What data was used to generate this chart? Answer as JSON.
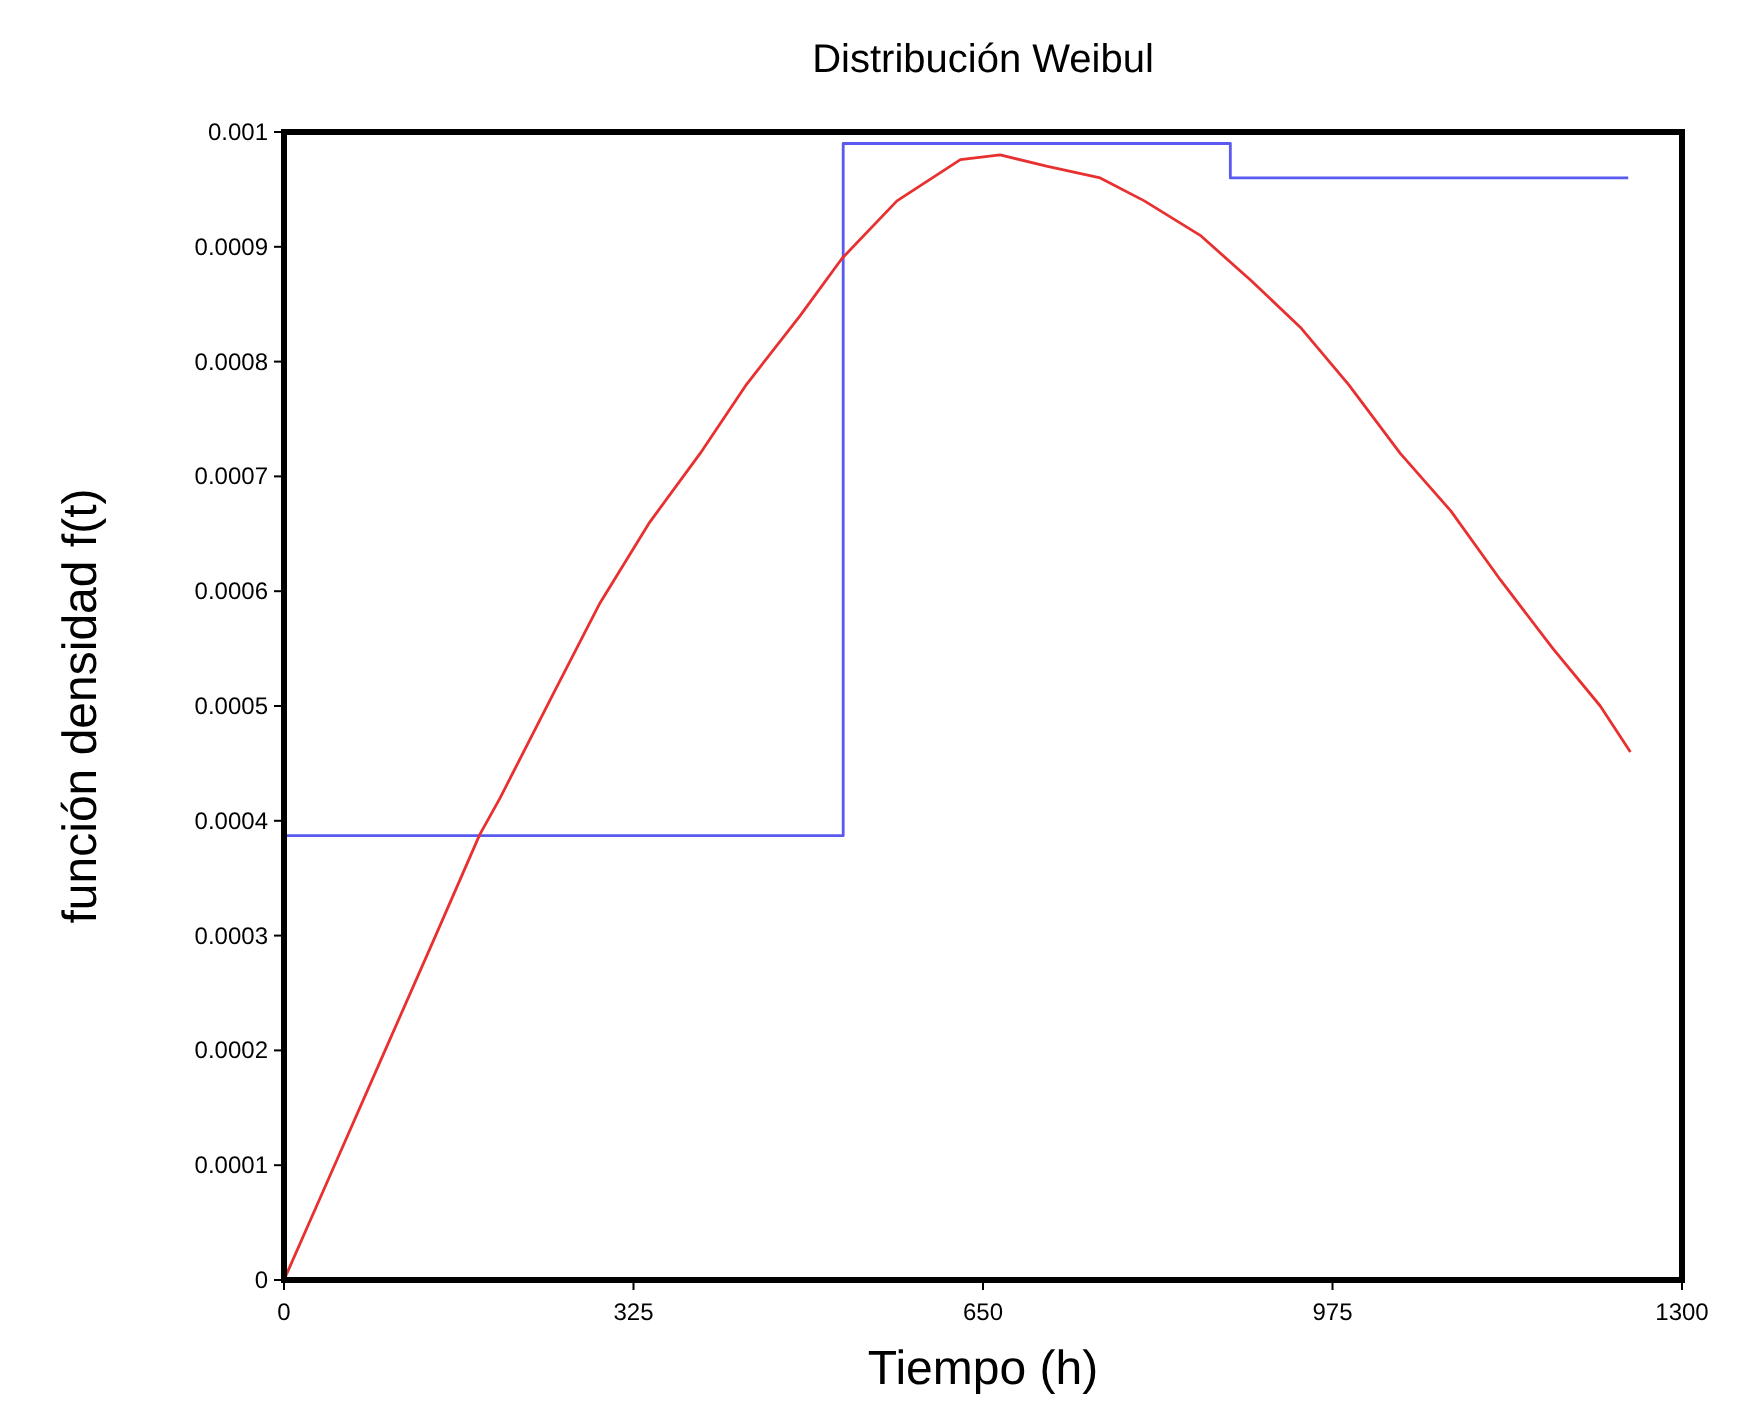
{
  "chart_data": {
    "type": "line",
    "title": "Distribución Weibul",
    "xlabel": "Tiempo (h)",
    "ylabel": "función densidad f(t)",
    "xlim": [
      0,
      1300
    ],
    "xticks": [
      0,
      325,
      650,
      975,
      1300
    ],
    "ylim": [
      0,
      0.001
    ],
    "yticks": [
      0,
      0.0001,
      0.0002,
      0.0003,
      0.0004,
      0.0005,
      0.0006,
      0.0007,
      0.0008,
      0.0009,
      0.001
    ],
    "grid": false,
    "marker": "none",
    "line_style": "solid",
    "series": [
      {
        "type": "step",
        "color": "#5a5af0",
        "x": [
          0,
          520,
          880,
          1250
        ],
        "values": [
          0.000387,
          0.00099,
          0.00096,
          0.00096
        ]
      },
      {
        "color": "#e83030",
        "x": [
          0,
          47,
          94,
          141,
          182,
          201,
          250,
          294,
          340,
          387,
          430,
          480,
          519,
          570,
          629,
          666,
          710,
          759,
          800,
          852,
          900,
          945,
          990,
          1038,
          1085,
          1131,
          1180,
          1224,
          1252
        ],
        "values": [
          0,
          0.0001,
          0.0002,
          0.0003,
          0.000388,
          0.00042,
          0.00051,
          0.00059,
          0.00066,
          0.00072,
          0.00078,
          0.00084,
          0.00089,
          0.00094,
          0.000976,
          0.00098,
          0.00097,
          0.00096,
          0.00094,
          0.00091,
          0.00087,
          0.00083,
          0.00078,
          0.00072,
          0.00067,
          0.00061,
          0.00055,
          0.0005,
          0.00046
        ]
      }
    ]
  }
}
